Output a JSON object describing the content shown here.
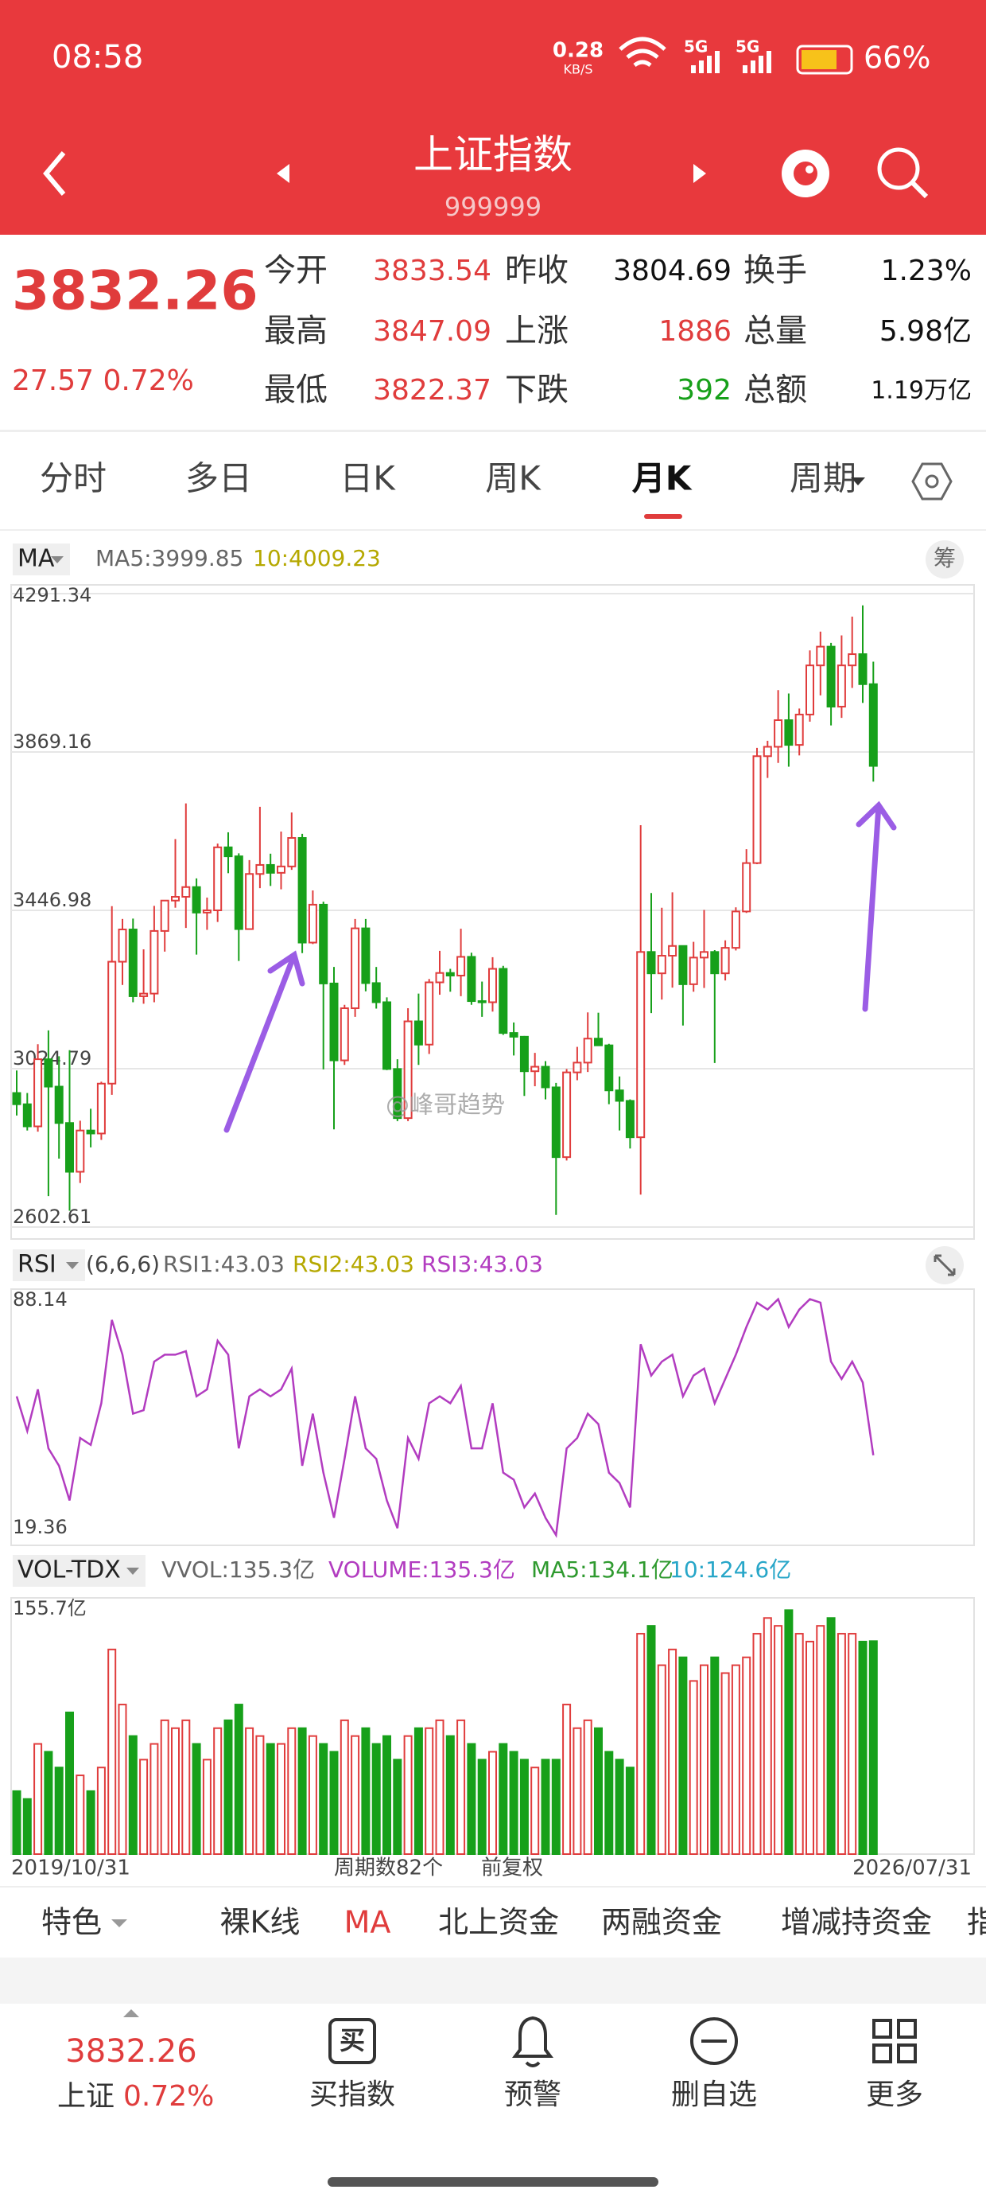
{
  "status_bar": {
    "time": "08:58",
    "speed": "0.28",
    "speed_unit": "KB/S",
    "network": "5G",
    "battery": "66%"
  },
  "header": {
    "title": "上证指数",
    "code": "999999"
  },
  "quote": {
    "price": "3832.26",
    "change": "27.57 0.72%",
    "stats": [
      [
        "今开",
        "3833.54",
        "昨收",
        "3804.69",
        "换手",
        "1.23%"
      ],
      [
        "最高",
        "3847.09",
        "上涨",
        "1886",
        "总量",
        "5.98亿"
      ],
      [
        "最低",
        "3822.37",
        "下跌",
        "392",
        "总额",
        "1.19万亿"
      ]
    ]
  },
  "tabs": [
    "分时",
    "多日",
    "日K",
    "周K",
    "月K",
    "周期"
  ],
  "chip_button": "筹",
  "watermark": "@峰哥趋势",
  "toolbar": [
    "特色",
    "裸K线",
    "MA",
    "北上资金",
    "两融资金",
    "增减持资金",
    "指"
  ],
  "bottom_nav": {
    "price": "3832.26",
    "name": "上证",
    "change": "0.72%",
    "items": [
      "买指数",
      "预警",
      "删自选",
      "更多"
    ]
  },
  "chart_data": [
    {
      "type": "candlestick",
      "indicator": "MA",
      "legend": [
        {
          "text": "MA5:3999.85",
          "color": "#666666"
        },
        {
          "text": "10:4009.23",
          "color": "#b5a800"
        }
      ],
      "up_color": "#e03c3c",
      "down_color": "#17a01a",
      "ylim": [
        2602.61,
        4291.34
      ],
      "yticks": [
        2602.61,
        3024.79,
        3446.98,
        3869.16,
        4291.34
      ],
      "grid": true,
      "open": [
        2960,
        2930,
        2871,
        3050,
        2977,
        2880,
        2750,
        2860,
        2852,
        2985,
        3310,
        3396,
        3218,
        3225,
        3392,
        3473,
        3483,
        3509,
        3441,
        3447,
        3615,
        3591,
        3397,
        3544,
        3568,
        3547,
        3564,
        3640,
        3361,
        3462,
        3252,
        3047,
        3186,
        3399,
        3253,
        3202,
        3024,
        2893,
        3151,
        3089,
        3255,
        3280,
        3273,
        3323,
        3205,
        3202,
        3291,
        3120,
        3110,
        3018,
        3030,
        2975,
        2789,
        3015,
        3041,
        3105,
        3087,
        2967,
        2939,
        2842,
        3336,
        3279,
        3326,
        3352,
        3250,
        3321,
        3336,
        3279,
        3347,
        3444,
        3573,
        3858,
        3883,
        3954,
        3888,
        3969,
        4100,
        4150,
        3990,
        4100,
        4130,
        4050
      ],
      "high": [
        3020,
        2960,
        3090,
        3127,
        3058,
        3074,
        2886,
        2918,
        2990,
        3458,
        3424,
        3425,
        3343,
        3459,
        3474,
        3637,
        3732,
        3532,
        3481,
        3625,
        3655,
        3599,
        3581,
        3723,
        3598,
        3657,
        3708,
        3651,
        3500,
        3470,
        3296,
        3195,
        3424,
        3424,
        3296,
        3215,
        3050,
        3186,
        3225,
        3264,
        3339,
        3291,
        3398,
        3334,
        3257,
        3322,
        3299,
        3148,
        3112,
        3067,
        3045,
        2987,
        3024,
        3083,
        3175,
        3174,
        3091,
        3004,
        2943,
        3674,
        3493,
        3454,
        3495,
        3352,
        3363,
        3448,
        3341,
        3367,
        3455,
        3610,
        3880,
        3899,
        4034,
        4025,
        3985,
        4140,
        4190,
        4160,
        4180,
        4230,
        4260,
        4110
      ],
      "low": [
        2900,
        2860,
        2857,
        2685,
        2785,
        2646,
        2720,
        2815,
        2835,
        2955,
        3248,
        3202,
        3198,
        3202,
        3337,
        3454,
        3400,
        3329,
        3395,
        3416,
        3546,
        3312,
        3395,
        3506,
        3512,
        3503,
        3555,
        3333,
        3357,
        3023,
        2863,
        3035,
        3163,
        3231,
        3185,
        3021,
        2885,
        2885,
        3035,
        3064,
        3222,
        3230,
        3218,
        3195,
        3163,
        3177,
        3115,
        3060,
        2952,
        2978,
        2943,
        2635,
        2780,
        2994,
        3016,
        3087,
        2930,
        2860,
        2812,
        2689,
        3173,
        3209,
        3241,
        3140,
        3230,
        3240,
        3040,
        3260,
        3340,
        3440,
        3570,
        3800,
        3840,
        3830,
        3860,
        3950,
        4020,
        3940,
        3960,
        4040,
        4000,
        3790
      ],
      "close": [
        2930,
        2871,
        3050,
        2977,
        2880,
        2750,
        2860,
        2852,
        2985,
        3310,
        3396,
        3218,
        3225,
        3392,
        3473,
        3483,
        3509,
        3441,
        3447,
        3615,
        3591,
        3397,
        3544,
        3568,
        3547,
        3564,
        3640,
        3361,
        3462,
        3252,
        3047,
        3186,
        3399,
        3253,
        3202,
        3024,
        2893,
        3151,
        3089,
        3255,
        3280,
        3273,
        3323,
        3205,
        3202,
        3291,
        3120,
        3110,
        3018,
        3030,
        2975,
        2789,
        3015,
        3041,
        3105,
        3087,
        2967,
        2939,
        2842,
        3336,
        3279,
        3326,
        3352,
        3250,
        3321,
        3336,
        3279,
        3347,
        3444,
        3573,
        3858,
        3883,
        3954,
        3888,
        3969,
        4100,
        4150,
        3990,
        4100,
        4130,
        4050,
        3832
      ]
    },
    {
      "type": "line",
      "indicator": "RSI",
      "legend": [
        {
          "text": "(6,6,6)",
          "color": "#444444"
        },
        {
          "text": "RSI1:43.03",
          "color": "#666666"
        },
        {
          "text": "RSI2:43.03",
          "color": "#b5a800"
        },
        {
          "text": "RSI3:43.03",
          "color": "#b23cc0"
        }
      ],
      "ylim": [
        19.36,
        88.14
      ],
      "yticks": [
        19.36,
        88.14
      ],
      "series": [
        {
          "color": "#b23cc0",
          "values": [
            60,
            50,
            62,
            45,
            40,
            30,
            48,
            46,
            58,
            82,
            72,
            55,
            56,
            70,
            72,
            72,
            73,
            60,
            62,
            76,
            72,
            45,
            60,
            62,
            60,
            62,
            68,
            40,
            55,
            38,
            25,
            42,
            60,
            45,
            42,
            30,
            22,
            48,
            42,
            58,
            60,
            58,
            63,
            45,
            45,
            58,
            38,
            36,
            28,
            32,
            25,
            20,
            45,
            48,
            55,
            52,
            38,
            35,
            28,
            75,
            66,
            70,
            72,
            60,
            66,
            68,
            58,
            65,
            72,
            80,
            87,
            85,
            88,
            80,
            85,
            88,
            87,
            70,
            65,
            70,
            64,
            43.03
          ]
        }
      ]
    },
    {
      "type": "bar",
      "indicator": "VOL-TDX",
      "legend": [
        {
          "text": "VVOL:135.3亿",
          "color": "#666666"
        },
        {
          "text": "VOLUME:135.3亿",
          "color": "#b23cc0"
        },
        {
          "text": "MA5:134.1亿",
          "color": "#2f9a2f"
        },
        {
          "text": "10:124.6亿",
          "color": "#27a6c8"
        }
      ],
      "ylim": [
        0,
        155.7
      ],
      "yticks": [
        {
          "value": 155.7,
          "label": "155.7亿"
        }
      ],
      "period_count": "周期数82个",
      "adjust": "前复权",
      "categories": [
        "2019/10/31",
        null,
        null,
        null,
        null,
        null,
        null,
        null,
        null,
        null,
        null,
        null,
        null,
        null,
        null,
        null,
        null,
        null,
        null,
        null,
        null,
        null,
        null,
        null,
        null,
        null,
        null,
        null,
        null,
        null,
        null,
        null,
        null,
        null,
        null,
        null,
        null,
        null,
        null,
        null,
        null,
        null,
        null,
        null,
        null,
        null,
        null,
        null,
        null,
        null,
        null,
        null,
        null,
        null,
        null,
        null,
        null,
        null,
        null,
        null,
        null,
        null,
        null,
        null,
        null,
        null,
        null,
        null,
        null,
        null,
        null,
        null,
        null,
        null,
        null,
        null,
        null,
        null,
        null,
        null,
        null,
        "2026/07/31"
      ],
      "values": [
        40,
        35,
        70,
        65,
        55,
        90,
        50,
        40,
        55,
        130,
        95,
        75,
        60,
        70,
        85,
        80,
        85,
        70,
        60,
        80,
        85,
        95,
        80,
        75,
        70,
        70,
        80,
        80,
        75,
        70,
        65,
        85,
        75,
        80,
        70,
        75,
        60,
        75,
        80,
        80,
        85,
        75,
        85,
        70,
        60,
        65,
        70,
        65,
        60,
        55,
        60,
        60,
        95,
        80,
        85,
        80,
        65,
        60,
        55,
        140,
        145,
        120,
        130,
        125,
        110,
        120,
        125,
        115,
        120,
        125,
        140,
        150,
        145,
        155,
        140,
        135,
        145,
        150,
        140,
        140,
        135,
        135.3
      ]
    }
  ]
}
